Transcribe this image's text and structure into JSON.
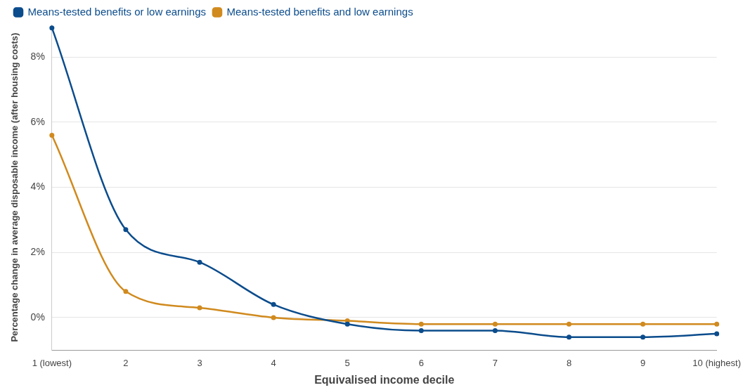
{
  "chart_data": {
    "type": "line",
    "xlabel": "Equivalised income decile",
    "ylabel": "Percentage change in average disposable income (after housing costs)",
    "categories": [
      "1 (lowest)",
      "2",
      "3",
      "4",
      "5",
      "6",
      "7",
      "8",
      "9",
      "10 (highest)"
    ],
    "series": [
      {
        "name": "Means-tested benefits or low earnings",
        "color": "#0b4c8c",
        "values": [
          8.9,
          2.7,
          1.7,
          0.4,
          -0.2,
          -0.4,
          -0.4,
          -0.6,
          -0.6,
          -0.5
        ]
      },
      {
        "name": "Means-tested benefits and low earnings",
        "color": "#d08a1e",
        "values": [
          5.6,
          0.8,
          0.3,
          0,
          -0.1,
          -0.2,
          -0.2,
          -0.2,
          -0.2,
          -0.2
        ]
      }
    ],
    "ylim": [
      -1,
      9
    ],
    "yticks": [
      {
        "value": 0,
        "label": "0%"
      },
      {
        "value": 2,
        "label": "2%"
      },
      {
        "value": 4,
        "label": "4%"
      },
      {
        "value": 6,
        "label": "6%"
      },
      {
        "value": 8,
        "label": "8%"
      }
    ],
    "grid": "y",
    "legend": "top left",
    "marker": "circle",
    "line_style": "solid"
  }
}
